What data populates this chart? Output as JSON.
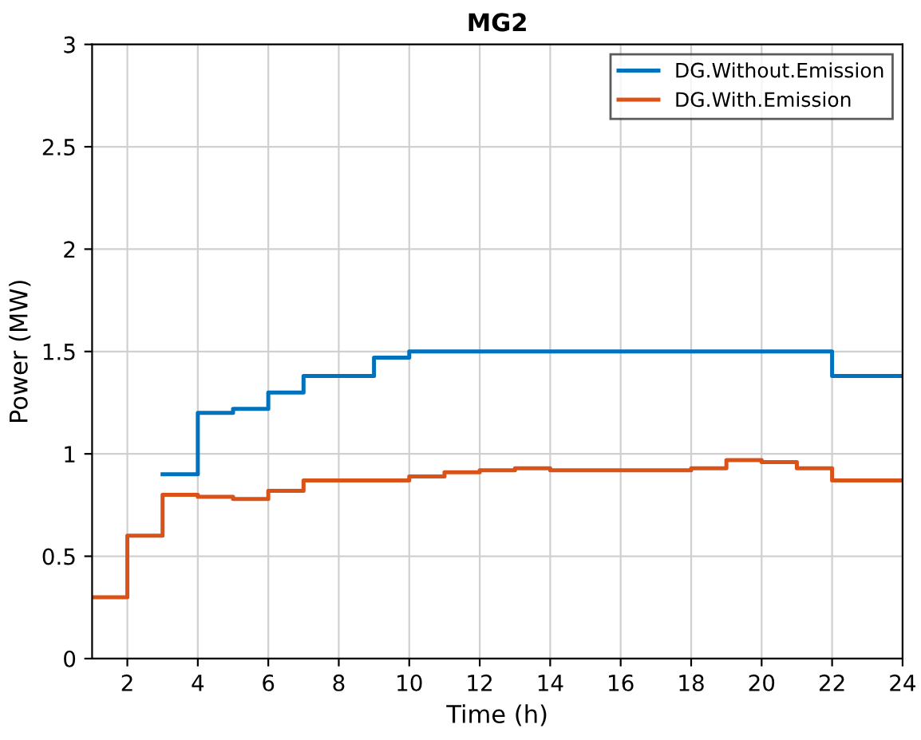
{
  "chart_data": {
    "type": "step",
    "title": "MG2",
    "xlabel": "Time (h)",
    "ylabel": "Power (MW)",
    "x": [
      1,
      2,
      3,
      4,
      5,
      6,
      7,
      8,
      9,
      10,
      11,
      12,
      13,
      14,
      15,
      16,
      17,
      18,
      19,
      20,
      21,
      22,
      23,
      24
    ],
    "series": [
      {
        "name": "DG.Without.Emission",
        "color": "#0072bd",
        "values": [
          null,
          null,
          0.9,
          1.2,
          1.22,
          1.3,
          1.38,
          1.38,
          1.47,
          1.5,
          1.5,
          1.5,
          1.5,
          1.5,
          1.5,
          1.5,
          1.5,
          1.5,
          1.5,
          1.5,
          1.5,
          1.38,
          1.38,
          1.38
        ]
      },
      {
        "name": "DG.With.Emission",
        "color": "#d95319",
        "values": [
          0.3,
          0.6,
          0.8,
          0.79,
          0.78,
          0.82,
          0.87,
          0.87,
          0.87,
          0.89,
          0.91,
          0.92,
          0.93,
          0.92,
          0.92,
          0.92,
          0.92,
          0.93,
          0.97,
          0.96,
          0.93,
          0.87,
          0.87,
          0.87
        ]
      }
    ],
    "xlim": [
      1,
      24
    ],
    "xticks": [
      2,
      4,
      6,
      8,
      10,
      12,
      14,
      16,
      18,
      20,
      22,
      24
    ],
    "ylim": [
      0,
      3
    ],
    "yticks": [
      0,
      0.5,
      1,
      1.5,
      2,
      2.5,
      3
    ],
    "grid": true,
    "legend": "top right"
  }
}
